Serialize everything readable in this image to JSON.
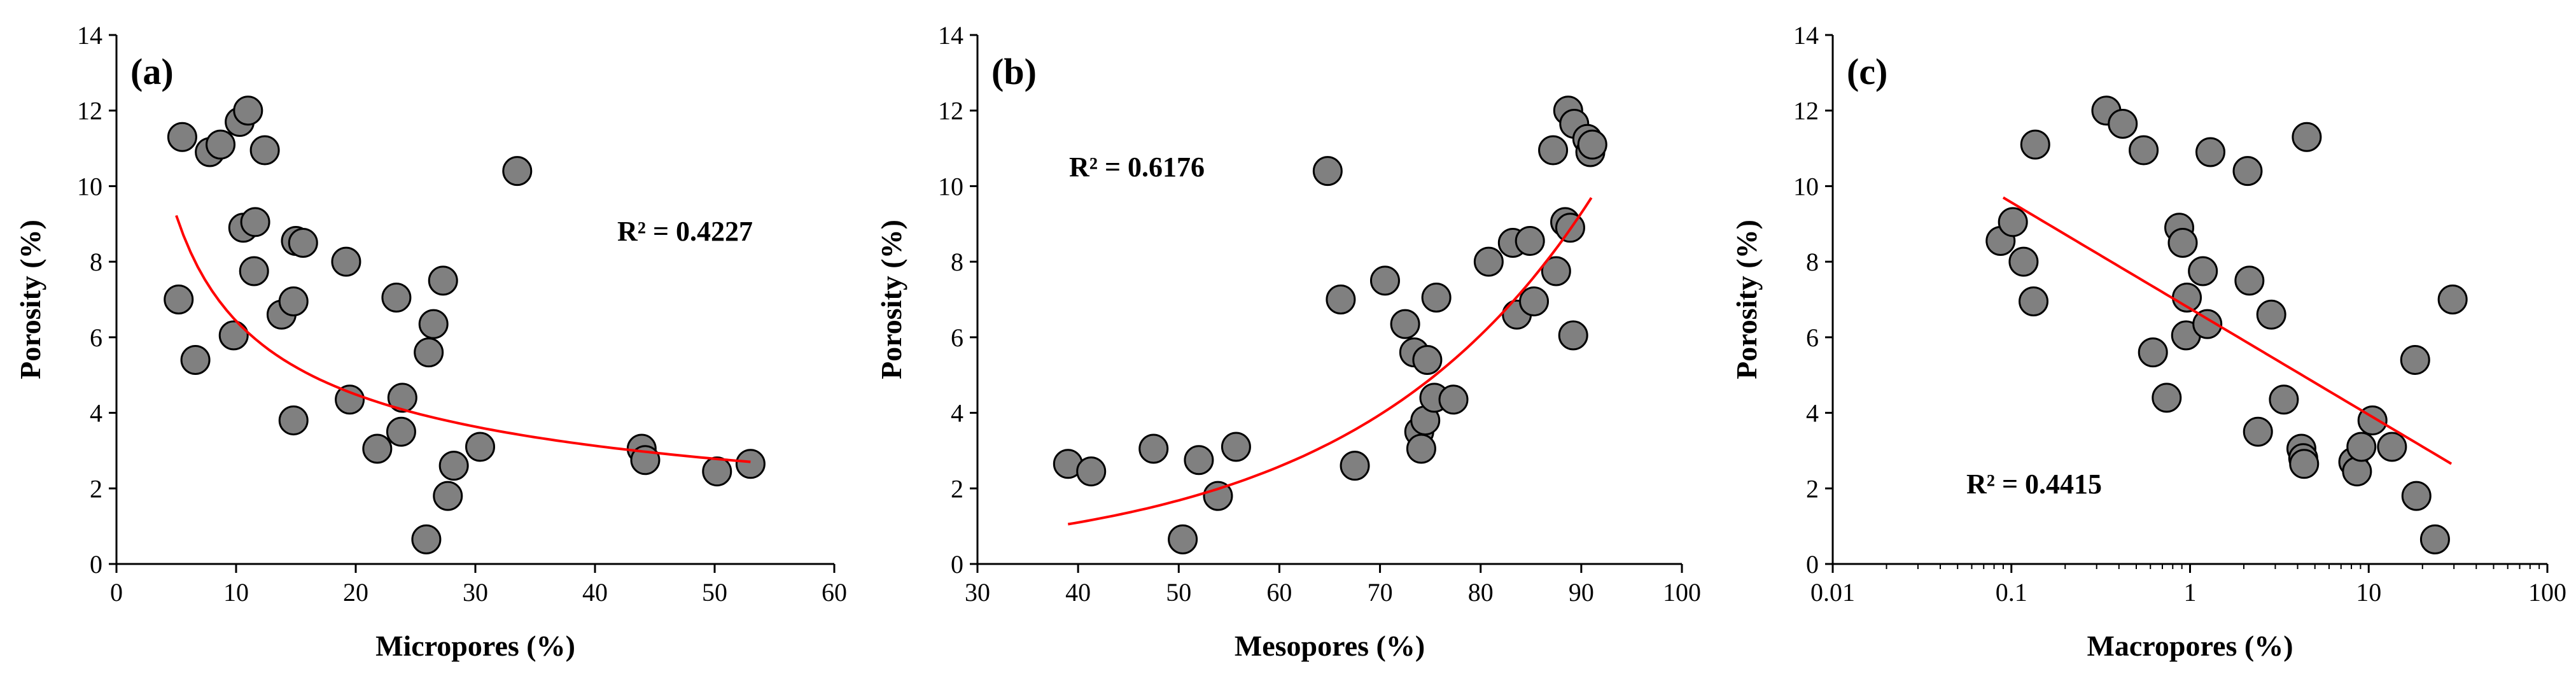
{
  "chart_data": [
    {
      "type": "scatter",
      "panel_label": "(a)",
      "xlabel": "Micropores (%)",
      "ylabel": "Porosity (%)",
      "xscale": "linear",
      "xlim": [
        0,
        60
      ],
      "ylim": [
        0,
        14
      ],
      "xticks": [
        0,
        10,
        20,
        30,
        40,
        50,
        60
      ],
      "xtick_labels": [
        "0",
        "10",
        "20",
        "30",
        "40",
        "50",
        "60"
      ],
      "yticks": [
        0,
        2,
        4,
        6,
        8,
        10,
        12,
        14
      ],
      "ytick_labels": [
        "0",
        "2",
        "4",
        "6",
        "8",
        "10",
        "12",
        "14"
      ],
      "r2_text": "R² = 0.4227",
      "trendline": {
        "type": "power",
        "a": 21.3,
        "b": -0.52,
        "x_range": [
          5,
          53
        ],
        "color": "#ff0000"
      },
      "points": [
        {
          "x": 5.2,
          "y": 7.0
        },
        {
          "x": 5.5,
          "y": 11.3
        },
        {
          "x": 6.6,
          "y": 5.4
        },
        {
          "x": 7.8,
          "y": 10.9
        },
        {
          "x": 8.7,
          "y": 11.1
        },
        {
          "x": 9.8,
          "y": 6.05
        },
        {
          "x": 10.3,
          "y": 11.7
        },
        {
          "x": 10.6,
          "y": 8.9
        },
        {
          "x": 11.0,
          "y": 12.0
        },
        {
          "x": 11.6,
          "y": 9.05
        },
        {
          "x": 11.5,
          "y": 7.75
        },
        {
          "x": 12.4,
          "y": 10.95
        },
        {
          "x": 13.8,
          "y": 6.6
        },
        {
          "x": 14.8,
          "y": 6.95
        },
        {
          "x": 15.0,
          "y": 8.55
        },
        {
          "x": 15.6,
          "y": 8.5
        },
        {
          "x": 14.8,
          "y": 3.8
        },
        {
          "x": 19.2,
          "y": 8.0
        },
        {
          "x": 19.5,
          "y": 4.35
        },
        {
          "x": 21.8,
          "y": 3.05
        },
        {
          "x": 23.4,
          "y": 7.05
        },
        {
          "x": 23.9,
          "y": 4.4
        },
        {
          "x": 23.8,
          "y": 3.5
        },
        {
          "x": 26.1,
          "y": 5.6
        },
        {
          "x": 26.5,
          "y": 6.35
        },
        {
          "x": 27.3,
          "y": 7.5
        },
        {
          "x": 25.9,
          "y": 0.65
        },
        {
          "x": 27.7,
          "y": 1.8
        },
        {
          "x": 28.2,
          "y": 2.6
        },
        {
          "x": 30.4,
          "y": 3.1
        },
        {
          "x": 33.5,
          "y": 10.4
        },
        {
          "x": 43.9,
          "y": 3.05
        },
        {
          "x": 44.2,
          "y": 2.75
        },
        {
          "x": 50.2,
          "y": 2.45
        },
        {
          "x": 53.0,
          "y": 2.65
        }
      ]
    },
    {
      "type": "scatter",
      "panel_label": "(b)",
      "xlabel": "Mesopores (%)",
      "ylabel": "Porosity (%)",
      "xscale": "linear",
      "xlim": [
        30,
        100
      ],
      "ylim": [
        0,
        14
      ],
      "xticks": [
        30,
        40,
        50,
        60,
        70,
        80,
        90,
        100
      ],
      "xtick_labels": [
        "30",
        "40",
        "50",
        "60",
        "70",
        "80",
        "90",
        "100"
      ],
      "yticks": [
        0,
        2,
        4,
        6,
        8,
        10,
        12,
        14
      ],
      "ytick_labels": [
        "0",
        "2",
        "4",
        "6",
        "8",
        "10",
        "12",
        "14"
      ],
      "r2_text": "R² = 0.6176",
      "trendline": {
        "type": "exponential",
        "a": 0.199,
        "b": 0.0427,
        "x_range": [
          39,
          91
        ],
        "color": "#ff0000"
      },
      "points": [
        {
          "x": 39.0,
          "y": 2.65
        },
        {
          "x": 41.3,
          "y": 2.45
        },
        {
          "x": 47.5,
          "y": 3.05
        },
        {
          "x": 50.4,
          "y": 0.65
        },
        {
          "x": 52.0,
          "y": 2.75
        },
        {
          "x": 53.9,
          "y": 1.8
        },
        {
          "x": 55.7,
          "y": 3.1
        },
        {
          "x": 64.8,
          "y": 10.4
        },
        {
          "x": 66.1,
          "y": 7.0
        },
        {
          "x": 67.5,
          "y": 2.6
        },
        {
          "x": 70.5,
          "y": 7.5
        },
        {
          "x": 72.5,
          "y": 6.35
        },
        {
          "x": 73.4,
          "y": 5.6
        },
        {
          "x": 73.9,
          "y": 3.5
        },
        {
          "x": 74.1,
          "y": 3.05
        },
        {
          "x": 74.5,
          "y": 3.8
        },
        {
          "x": 74.7,
          "y": 5.4
        },
        {
          "x": 75.4,
          "y": 4.4
        },
        {
          "x": 75.6,
          "y": 7.05
        },
        {
          "x": 77.3,
          "y": 4.35
        },
        {
          "x": 80.8,
          "y": 8.0
        },
        {
          "x": 83.2,
          "y": 8.5
        },
        {
          "x": 83.6,
          "y": 6.6
        },
        {
          "x": 84.9,
          "y": 8.55
        },
        {
          "x": 85.3,
          "y": 6.95
        },
        {
          "x": 87.2,
          "y": 10.95
        },
        {
          "x": 87.5,
          "y": 7.75
        },
        {
          "x": 88.4,
          "y": 9.05
        },
        {
          "x": 88.7,
          "y": 12.0
        },
        {
          "x": 88.9,
          "y": 8.9
        },
        {
          "x": 89.2,
          "y": 6.05
        },
        {
          "x": 89.3,
          "y": 11.65
        },
        {
          "x": 90.6,
          "y": 11.25
        },
        {
          "x": 90.9,
          "y": 10.9
        },
        {
          "x": 91.1,
          "y": 11.1
        }
      ]
    },
    {
      "type": "scatter",
      "panel_label": "(c)",
      "xlabel": "Macropores (%)",
      "ylabel": "Porosity (%)",
      "xscale": "log",
      "xlim": [
        0.01,
        100
      ],
      "ylim": [
        0,
        14
      ],
      "xticks": [
        0.01,
        0.1,
        1,
        10,
        100
      ],
      "xtick_labels": [
        "0.01",
        "0.1",
        "1",
        "10",
        "100"
      ],
      "yticks": [
        0,
        2,
        4,
        6,
        8,
        10,
        12,
        14
      ],
      "ytick_labels": [
        "0",
        "2",
        "4",
        "6",
        "8",
        "10",
        "12",
        "14"
      ],
      "r2_text": "R² = 0.4415",
      "trendline": {
        "type": "logarithmic",
        "a": 6.76,
        "b": -1.22,
        "x_range": [
          0.09,
          29
        ],
        "color": "#ff0000"
      },
      "points": [
        {
          "x": 0.087,
          "y": 8.55
        },
        {
          "x": 0.102,
          "y": 9.05
        },
        {
          "x": 0.117,
          "y": 8.0
        },
        {
          "x": 0.133,
          "y": 6.95
        },
        {
          "x": 0.136,
          "y": 11.1
        },
        {
          "x": 0.34,
          "y": 12.0
        },
        {
          "x": 0.42,
          "y": 11.65
        },
        {
          "x": 0.55,
          "y": 10.95
        },
        {
          "x": 0.62,
          "y": 5.6
        },
        {
          "x": 0.74,
          "y": 4.4
        },
        {
          "x": 0.87,
          "y": 8.9
        },
        {
          "x": 0.91,
          "y": 8.5
        },
        {
          "x": 0.95,
          "y": 6.05
        },
        {
          "x": 0.96,
          "y": 7.05
        },
        {
          "x": 1.18,
          "y": 7.75
        },
        {
          "x": 1.25,
          "y": 6.35
        },
        {
          "x": 1.3,
          "y": 10.9
        },
        {
          "x": 2.1,
          "y": 10.4
        },
        {
          "x": 2.15,
          "y": 7.5
        },
        {
          "x": 2.4,
          "y": 3.5
        },
        {
          "x": 2.85,
          "y": 6.6
        },
        {
          "x": 3.35,
          "y": 4.35
        },
        {
          "x": 4.2,
          "y": 3.05
        },
        {
          "x": 4.3,
          "y": 2.8
        },
        {
          "x": 4.35,
          "y": 2.65
        },
        {
          "x": 4.5,
          "y": 11.3
        },
        {
          "x": 8.2,
          "y": 2.7
        },
        {
          "x": 8.6,
          "y": 2.45
        },
        {
          "x": 9.1,
          "y": 3.1
        },
        {
          "x": 10.5,
          "y": 3.8
        },
        {
          "x": 13.5,
          "y": 3.1
        },
        {
          "x": 18.2,
          "y": 5.4
        },
        {
          "x": 18.5,
          "y": 1.8
        },
        {
          "x": 23.5,
          "y": 0.65
        },
        {
          "x": 29.5,
          "y": 7.0
        }
      ]
    }
  ]
}
